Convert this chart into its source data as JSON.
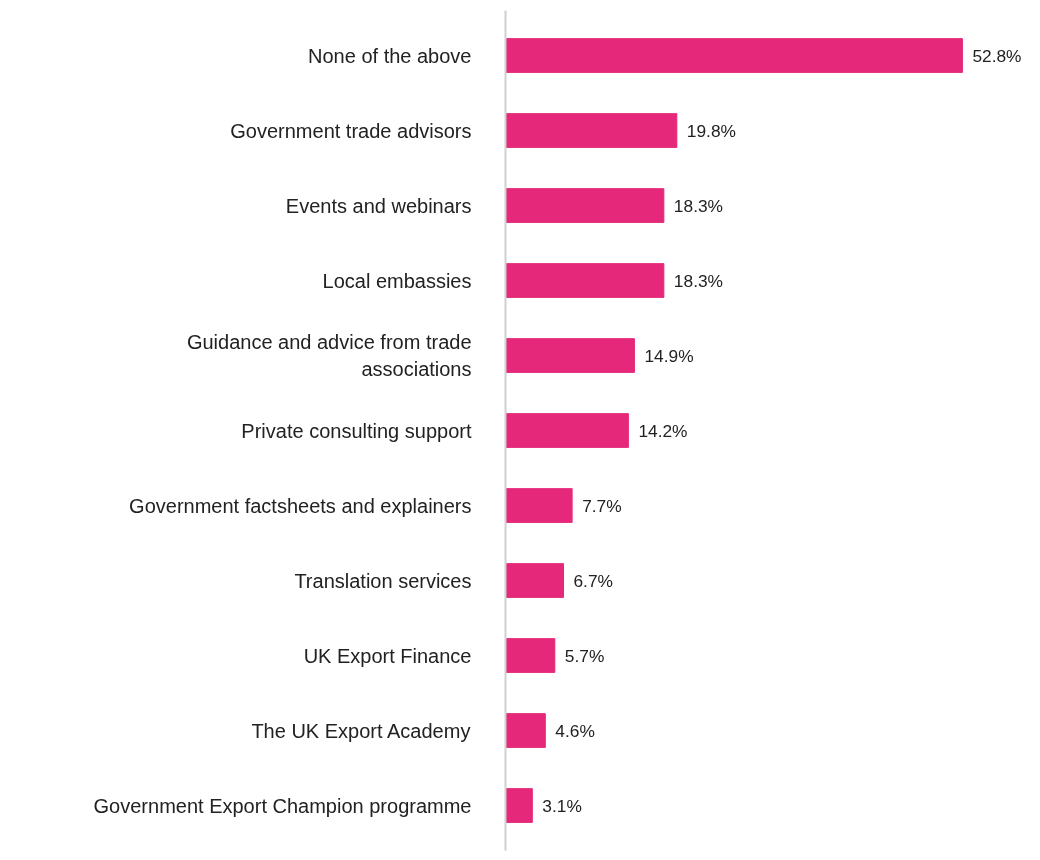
{
  "chart_data": {
    "type": "bar",
    "orientation": "horizontal",
    "categories": [
      "None of the above",
      "Government trade advisors",
      "Events and webinars",
      "Local embassies",
      "Guidance and advice from trade associations",
      "Private consulting support",
      "Government factsheets and explainers",
      "Translation services",
      "UK Export Finance",
      "The UK Export Academy",
      "Government Export Champion programme"
    ],
    "values": [
      52.8,
      19.8,
      18.3,
      18.3,
      14.9,
      14.2,
      7.7,
      6.7,
      5.7,
      4.6,
      3.1
    ],
    "value_labels": [
      "52.8%",
      "19.8%",
      "18.3%",
      "18.3%",
      "14.9%",
      "14.2%",
      "7.7%",
      "6.7%",
      "5.7%",
      "4.6%",
      "3.1%"
    ],
    "color": "#e6287a",
    "grid": false
  }
}
